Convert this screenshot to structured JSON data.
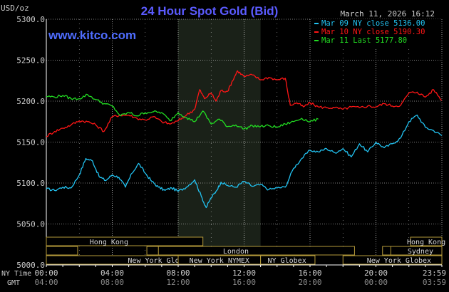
{
  "header": {
    "title": "24 Hour Spot Gold (Bid)",
    "unit": "USD/oz",
    "timestamp": "March 11, 2026 16:12",
    "site": "www.kitco.com"
  },
  "sessions": {
    "hong_kong": "Hong Kong",
    "london": "London",
    "new_york_globex": "New York Globex",
    "new_york_nymex": "New York NYMEX",
    "ny_globex": "NY Globex",
    "sydney": "Sydney"
  },
  "x_axis": {
    "ny_time_label": "NY Time",
    "gmt_label": "GMT",
    "ny_ticks": [
      "00:00",
      "04:00",
      "08:00",
      "12:00",
      "16:00",
      "20:00",
      "23:59"
    ],
    "gmt_ticks": [
      "04:00",
      "08:00",
      "12:00",
      "16:00",
      "20:00",
      "00:00",
      "03:59"
    ]
  },
  "colors": {
    "background": "#000000",
    "grid": "#ffffff",
    "title": "#5b5bff",
    "site": "#4f6dff",
    "axis_text": "#cccccc",
    "session_fill": "#000000",
    "session_border": "#b59a3a",
    "session_text": "#d8d8d8",
    "nymex_shade": "#1a2118",
    "mar09": "#22c3f2",
    "mar10": "#ff1616",
    "mar11": "#22dd22"
  },
  "chart_data": {
    "type": "line",
    "ylabel": "USD/oz",
    "ylim": [
      5000,
      5300
    ],
    "yticks": [
      "5000.0",
      "5050.0",
      "5100.0",
      "5150.0",
      "5200.0",
      "5250.0",
      "5300.0"
    ],
    "xlim": [
      0,
      24
    ],
    "x_unit": "hours (NY time)",
    "nymex_hours": [
      8,
      13
    ],
    "series": [
      {
        "name": "Mar 09 NY close 5136.00",
        "color": "#22c3f2",
        "x": [
          0,
          0.5,
          1,
          1.5,
          2,
          2.4,
          2.8,
          3.2,
          3.6,
          4,
          4.4,
          4.8,
          5.2,
          5.6,
          6,
          6.4,
          6.8,
          7.2,
          7.6,
          8,
          8.5,
          9,
          9.4,
          9.7,
          10,
          10.3,
          10.6,
          11,
          11.5,
          12,
          12.5,
          13,
          13.5,
          14,
          14.5,
          15,
          15.5,
          16,
          16.5,
          17,
          17.5,
          18,
          18.5,
          19,
          19.5,
          20,
          20.5,
          21,
          21.5,
          22,
          22.5,
          23,
          23.5,
          24
        ],
        "values": [
          5093,
          5091,
          5095,
          5094,
          5110,
          5130,
          5127,
          5108,
          5103,
          5110,
          5107,
          5095,
          5112,
          5124,
          5112,
          5102,
          5095,
          5091,
          5094,
          5090,
          5095,
          5104,
          5084,
          5070,
          5082,
          5090,
          5101,
          5097,
          5095,
          5102,
          5096,
          5098,
          5092,
          5094,
          5095,
          5118,
          5130,
          5140,
          5138,
          5142,
          5137,
          5142,
          5132,
          5148,
          5138,
          5150,
          5143,
          5148,
          5155,
          5175,
          5183,
          5168,
          5164,
          5158
        ]
      },
      {
        "name": "Mar 10 NY close 5190.30",
        "color": "#ff1616",
        "x": [
          0,
          0.5,
          1,
          1.5,
          2,
          2.5,
          3,
          3.5,
          4,
          4.5,
          5,
          5.5,
          6,
          6.5,
          7,
          7.5,
          8,
          8.5,
          9,
          9.3,
          9.6,
          10,
          10.3,
          10.6,
          11,
          11.3,
          11.6,
          12,
          12.5,
          13,
          13.5,
          14,
          14.5,
          14.8,
          15.2,
          15.6,
          16,
          16.5,
          17,
          17.5,
          18,
          18.5,
          19,
          19.5,
          20,
          20.5,
          21,
          21.5,
          22,
          22.5,
          23,
          23.5,
          24
        ],
        "values": [
          5157,
          5163,
          5167,
          5171,
          5176,
          5175,
          5171,
          5163,
          5181,
          5183,
          5183,
          5179,
          5177,
          5181,
          5175,
          5172,
          5176,
          5183,
          5190,
          5214,
          5203,
          5210,
          5200,
          5213,
          5212,
          5225,
          5237,
          5230,
          5232,
          5226,
          5229,
          5226,
          5228,
          5195,
          5198,
          5193,
          5198,
          5193,
          5192,
          5192,
          5190,
          5193,
          5192,
          5194,
          5193,
          5197,
          5194,
          5195,
          5210,
          5211,
          5205,
          5214,
          5201
        ]
      },
      {
        "name": "Mar 11 Last 5177.80",
        "color": "#22dd22",
        "x": [
          0,
          0.5,
          1,
          1.5,
          2,
          2.5,
          3,
          3.5,
          4,
          4.5,
          5,
          5.5,
          6,
          6.5,
          7,
          7.5,
          8,
          8.5,
          9,
          9.5,
          10,
          10.5,
          11,
          11.5,
          12,
          12.5,
          13,
          13.5,
          14,
          14.5,
          15,
          15.5,
          16,
          16.5
        ],
        "values": [
          5206,
          5205,
          5207,
          5203,
          5203,
          5208,
          5202,
          5197,
          5194,
          5182,
          5186,
          5182,
          5186,
          5187,
          5186,
          5176,
          5186,
          5180,
          5175,
          5188,
          5172,
          5178,
          5169,
          5171,
          5166,
          5170,
          5169,
          5170,
          5168,
          5172,
          5175,
          5179,
          5175,
          5178
        ]
      }
    ]
  }
}
